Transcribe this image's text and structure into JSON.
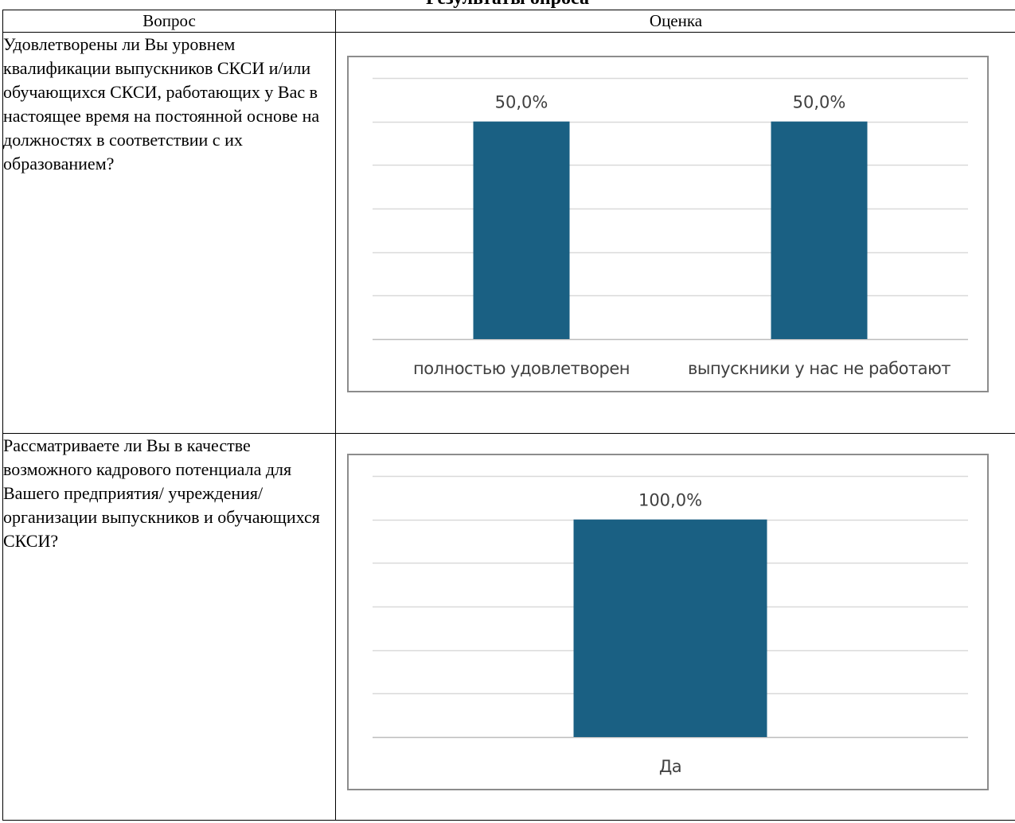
{
  "page": {
    "title": "Результаты опроса"
  },
  "table": {
    "headers": [
      "Вопрос",
      "Оценка"
    ],
    "rows": [
      {
        "question": "Удовлетворены ли Вы уровнем квалификации выпускников СКСИ и/или обучающихся СКСИ, работающих у Вас в настоящее время на постоянной основе на должностях в соответствии с их образованием?"
      },
      {
        "question": "Рассматриваете ли Вы в качестве возможного кадрового потенциала для Вашего предприятия/ учреждения/ организации выпускников и обучающихся СКСИ?"
      }
    ]
  },
  "chart_data": [
    {
      "type": "bar",
      "categories": [
        "полностью удовлетворен",
        "выпускники у нас не работают"
      ],
      "values": [
        50.0,
        50.0
      ],
      "data_labels": [
        "50,0%",
        "50,0%"
      ],
      "ylim": [
        0,
        60
      ],
      "grid": true,
      "bar_color": "#1a6083"
    },
    {
      "type": "bar",
      "categories": [
        "Да"
      ],
      "values": [
        100.0
      ],
      "data_labels": [
        "100,0%"
      ],
      "ylim": [
        0,
        120
      ],
      "grid": true,
      "bar_color": "#1a6083"
    }
  ]
}
